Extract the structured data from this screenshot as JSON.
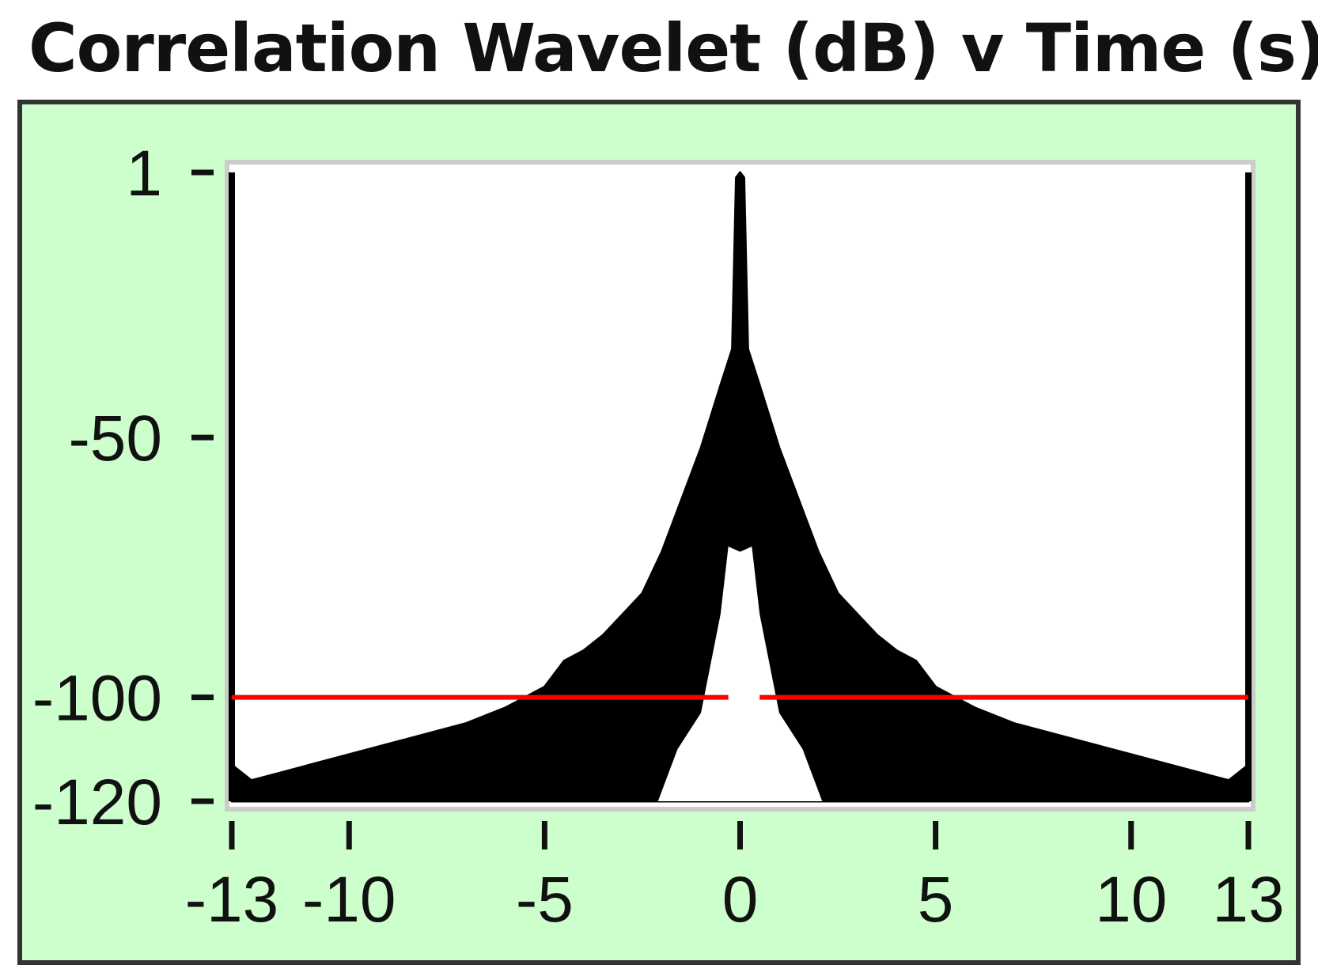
{
  "colors": {
    "panel_background": "#ccffcc",
    "plot_background": "#ffffff",
    "signal": "#000000",
    "threshold_line": "#ff0000"
  },
  "chart_data": {
    "type": "area",
    "title": "Correlation Wavelet (dB) v Time (s)",
    "xlim": [
      -13,
      13
    ],
    "ylim": [
      -120,
      1
    ],
    "x_ticks": [
      -13,
      -10,
      -5,
      0,
      5,
      10,
      13
    ],
    "x_tick_labels": [
      "-13",
      "-10",
      "-5",
      "0",
      "5",
      "10",
      "13"
    ],
    "y_ticks": [
      1,
      -50,
      -100,
      -120
    ],
    "y_tick_labels": [
      "1",
      "-50",
      "-100",
      "-120"
    ],
    "grid": false,
    "threshold": {
      "y": -100,
      "gap_x": [
        -0.3,
        0.5
      ]
    },
    "series": [
      {
        "outer_envelope": {
          "x": [
            -13,
            -12.5,
            -12,
            -11,
            -10,
            -9,
            -8,
            -7,
            -6,
            -5,
            -4.5,
            -4,
            -3.5,
            -3,
            -2.5,
            -2,
            -1.5,
            -1,
            -0.5,
            -0.2,
            -0.1,
            0,
            0.1,
            0.2,
            0.5,
            1,
            1.5,
            2,
            2.5,
            3,
            3.5,
            4,
            4.5,
            5,
            6,
            7,
            8,
            9,
            10,
            11,
            12,
            12.5,
            13
          ],
          "y": [
            -113,
            -116,
            -115,
            -113,
            -111,
            -109,
            -107,
            -105,
            -102,
            -98,
            -93,
            -91,
            -88,
            -84,
            -80,
            -72,
            -62,
            -52,
            -40,
            -33,
            0,
            1,
            0,
            -33,
            -40,
            -52,
            -62,
            -72,
            -80,
            -84,
            -88,
            -91,
            -93,
            -98,
            -102,
            -105,
            -107,
            -109,
            -111,
            -113,
            -115,
            -116,
            -113
          ]
        },
        "inner_gap": {
          "x": [
            -2.1,
            -1.6,
            -1.0,
            -0.5,
            -0.3,
            0,
            0.3,
            0.5,
            1.0,
            1.6,
            2.1
          ],
          "y": [
            -120,
            -110,
            -103,
            -84,
            -71,
            -72,
            -71,
            -84,
            -103,
            -110,
            -120
          ]
        }
      }
    ]
  }
}
